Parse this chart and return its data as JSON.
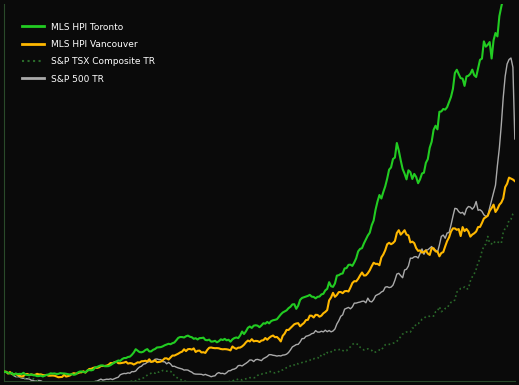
{
  "background_color": "#0a0a0a",
  "plot_bg_color": "#0a0a0a",
  "axis_color": "#2a4a2a",
  "line_colors": {
    "toronto_hpi": "#22cc22",
    "vancouver_hpi": "#ffb800",
    "tsx": "#2a6a2a",
    "sp500": "#aaaaaa"
  },
  "legend": {
    "entries": [
      "MLS HPI Toronto",
      "MLS HPI Vancouver",
      "S&P TSX Composite TR",
      "S&P 500 TR"
    ],
    "colors": [
      "#22cc22",
      "#ffb800",
      "#2a6a2a",
      "#aaaaaa"
    ],
    "styles": [
      "solid",
      "solid",
      "dotted",
      "solid"
    ]
  },
  "xmin": 2000,
  "xmax": 2022,
  "ymin": 80,
  "ymax": 900
}
